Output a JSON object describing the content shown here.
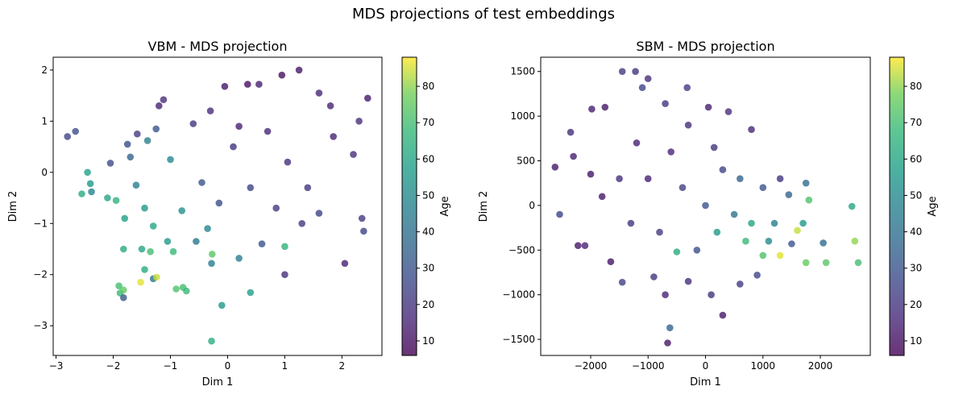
{
  "suptitle": "MDS projections of test embeddings",
  "chart_data": [
    {
      "type": "scatter",
      "title": "VBM - MDS projection",
      "xlabel": "Dim 1",
      "ylabel": "Dim 2",
      "xlim": [
        -3.05,
        2.7
      ],
      "ylim": [
        -3.58,
        2.25
      ],
      "xticks": [
        -3,
        -2,
        -1,
        0,
        1,
        2
      ],
      "yticks": [
        -3,
        -2,
        -1,
        0,
        1,
        2
      ],
      "colorbar": {
        "label": "Age",
        "range": [
          6,
          88
        ],
        "ticks": [
          10,
          20,
          30,
          40,
          50,
          60,
          70,
          80
        ],
        "colormap": "viridis"
      },
      "points": [
        {
          "x": -2.8,
          "y": 0.7,
          "age": 25
        },
        {
          "x": -2.66,
          "y": 0.8,
          "age": 28
        },
        {
          "x": -2.55,
          "y": -0.42,
          "age": 62
        },
        {
          "x": -2.45,
          "y": 0.0,
          "age": 58
        },
        {
          "x": -2.4,
          "y": -0.22,
          "age": 55
        },
        {
          "x": -2.38,
          "y": -0.38,
          "age": 48
        },
        {
          "x": -2.05,
          "y": 0.18,
          "age": 27
        },
        {
          "x": -2.1,
          "y": -0.5,
          "age": 60
        },
        {
          "x": -1.95,
          "y": -0.55,
          "age": 65
        },
        {
          "x": -1.9,
          "y": -2.22,
          "age": 70
        },
        {
          "x": -1.88,
          "y": -2.36,
          "age": 68
        },
        {
          "x": -1.82,
          "y": -2.3,
          "age": 75
        },
        {
          "x": -1.82,
          "y": -2.45,
          "age": 32
        },
        {
          "x": -1.8,
          "y": -0.9,
          "age": 58
        },
        {
          "x": -1.82,
          "y": -1.5,
          "age": 62
        },
        {
          "x": -1.75,
          "y": 0.55,
          "age": 28
        },
        {
          "x": -1.58,
          "y": 0.75,
          "age": 22
        },
        {
          "x": -1.5,
          "y": -1.5,
          "age": 60
        },
        {
          "x": -1.52,
          "y": -2.15,
          "age": 86
        },
        {
          "x": -1.45,
          "y": -1.9,
          "age": 62
        },
        {
          "x": -1.4,
          "y": 0.62,
          "age": 45
        },
        {
          "x": -1.35,
          "y": -1.55,
          "age": 70
        },
        {
          "x": -1.3,
          "y": -2.08,
          "age": 40
        },
        {
          "x": -1.24,
          "y": -2.05,
          "age": 84
        },
        {
          "x": -1.2,
          "y": 1.3,
          "age": 15
        },
        {
          "x": -1.12,
          "y": 1.42,
          "age": 18
        },
        {
          "x": -0.95,
          "y": -1.55,
          "age": 68
        },
        {
          "x": -0.9,
          "y": -2.28,
          "age": 72
        },
        {
          "x": -0.78,
          "y": -2.25,
          "age": 70
        },
        {
          "x": -0.72,
          "y": -2.32,
          "age": 68
        },
        {
          "x": -0.28,
          "y": -1.78,
          "age": 45
        },
        {
          "x": -0.27,
          "y": -1.6,
          "age": 74
        },
        {
          "x": -0.28,
          "y": -3.3,
          "age": 64
        },
        {
          "x": -0.1,
          "y": -2.6,
          "age": 55
        },
        {
          "x": 0.2,
          "y": -1.68,
          "age": 45
        },
        {
          "x": 0.4,
          "y": -2.35,
          "age": 58
        },
        {
          "x": 0.95,
          "y": 1.9,
          "age": 10
        },
        {
          "x": 1.25,
          "y": 2.0,
          "age": 12
        },
        {
          "x": 2.45,
          "y": 1.45,
          "age": 12
        },
        {
          "x": 2.2,
          "y": 0.35,
          "age": 18
        },
        {
          "x": 2.35,
          "y": -0.9,
          "age": 22
        },
        {
          "x": 2.38,
          "y": -1.15,
          "age": 25
        },
        {
          "x": 2.05,
          "y": -1.78,
          "age": 14
        },
        {
          "x": 1.0,
          "y": -2.0,
          "age": 18
        },
        {
          "x": 1.0,
          "y": -1.45,
          "age": 65
        },
        {
          "x": 0.35,
          "y": 1.72,
          "age": 10
        },
        {
          "x": -0.05,
          "y": 1.68,
          "age": 12
        },
        {
          "x": 0.55,
          "y": 1.72,
          "age": 14
        },
        {
          "x": 1.6,
          "y": 1.55,
          "age": 16
        },
        {
          "x": 1.8,
          "y": 1.3,
          "age": 15
        },
        {
          "x": 2.3,
          "y": 1.0,
          "age": 18
        },
        {
          "x": -1.6,
          "y": -0.25,
          "age": 45
        },
        {
          "x": -1.45,
          "y": -0.7,
          "age": 55
        },
        {
          "x": -1.3,
          "y": -1.05,
          "age": 60
        },
        {
          "x": -1.05,
          "y": -1.35,
          "age": 55
        },
        {
          "x": -0.55,
          "y": -1.35,
          "age": 42
        },
        {
          "x": -0.35,
          "y": -1.1,
          "age": 48
        },
        {
          "x": 0.6,
          "y": -1.4,
          "age": 30
        },
        {
          "x": 1.3,
          "y": -1.0,
          "age": 22
        },
        {
          "x": 1.6,
          "y": -0.8,
          "age": 25
        },
        {
          "x": 1.85,
          "y": 0.7,
          "age": 15
        },
        {
          "x": -1.7,
          "y": 0.3,
          "age": 35
        },
        {
          "x": -1.25,
          "y": 0.85,
          "age": 30
        },
        {
          "x": -1.0,
          "y": 0.25,
          "age": 50
        },
        {
          "x": -0.8,
          "y": -0.75,
          "age": 52
        },
        {
          "x": -0.6,
          "y": 0.95,
          "age": 20
        },
        {
          "x": -0.3,
          "y": 1.2,
          "age": 18
        },
        {
          "x": 0.1,
          "y": 0.5,
          "age": 20
        },
        {
          "x": 0.4,
          "y": -0.3,
          "age": 25
        },
        {
          "x": 0.7,
          "y": 0.8,
          "age": 16
        },
        {
          "x": 1.05,
          "y": 0.2,
          "age": 18
        },
        {
          "x": 1.4,
          "y": -0.3,
          "age": 20
        },
        {
          "x": -0.45,
          "y": -0.2,
          "age": 30
        },
        {
          "x": -0.15,
          "y": -0.6,
          "age": 28
        },
        {
          "x": 0.2,
          "y": 0.9,
          "age": 14
        },
        {
          "x": 0.85,
          "y": -0.7,
          "age": 22
        }
      ]
    },
    {
      "type": "scatter",
      "title": "SBM - MDS projection",
      "xlabel": "Dim 1",
      "ylabel": "Dim 2",
      "xlim": [
        -2870,
        2870
      ],
      "ylim": [
        -1680,
        1660
      ],
      "xticks": [
        -2000,
        -1000,
        0,
        1000,
        2000
      ],
      "yticks": [
        -1500,
        -1000,
        -500,
        0,
        500,
        1000,
        1500
      ],
      "colorbar": {
        "label": "Age",
        "range": [
          6,
          88
        ],
        "ticks": [
          10,
          20,
          30,
          40,
          50,
          60,
          70,
          80
        ],
        "colormap": "viridis"
      },
      "points": [
        {
          "x": -2620,
          "y": 430,
          "age": 12
        },
        {
          "x": -2540,
          "y": -100,
          "age": 25
        },
        {
          "x": -2350,
          "y": 820,
          "age": 18
        },
        {
          "x": -2220,
          "y": -450,
          "age": 12
        },
        {
          "x": -2100,
          "y": -450,
          "age": 15
        },
        {
          "x": -1980,
          "y": 1080,
          "age": 14
        },
        {
          "x": -1750,
          "y": 1100,
          "age": 12
        },
        {
          "x": -1650,
          "y": -630,
          "age": 12
        },
        {
          "x": -1450,
          "y": 1500,
          "age": 22
        },
        {
          "x": -1220,
          "y": 1500,
          "age": 20
        },
        {
          "x": -1000,
          "y": 1420,
          "age": 18
        },
        {
          "x": -1100,
          "y": 1320,
          "age": 25
        },
        {
          "x": -700,
          "y": 1140,
          "age": 20
        },
        {
          "x": -320,
          "y": 1320,
          "age": 22
        },
        {
          "x": -1450,
          "y": -860,
          "age": 24
        },
        {
          "x": -900,
          "y": -800,
          "age": 20
        },
        {
          "x": -700,
          "y": -1000,
          "age": 15
        },
        {
          "x": -620,
          "y": -1370,
          "age": 35
        },
        {
          "x": -660,
          "y": -1540,
          "age": 12
        },
        {
          "x": 300,
          "y": -1230,
          "age": 12
        },
        {
          "x": 100,
          "y": -1000,
          "age": 20
        },
        {
          "x": -300,
          "y": -850,
          "age": 18
        },
        {
          "x": 600,
          "y": -880,
          "age": 22
        },
        {
          "x": 900,
          "y": -780,
          "age": 25
        },
        {
          "x": 1500,
          "y": -430,
          "age": 30
        },
        {
          "x": 1750,
          "y": -640,
          "age": 76
        },
        {
          "x": 2550,
          "y": -10,
          "age": 60
        },
        {
          "x": 2600,
          "y": -400,
          "age": 80
        },
        {
          "x": 2660,
          "y": -640,
          "age": 70
        },
        {
          "x": 2100,
          "y": -640,
          "age": 74
        },
        {
          "x": 2050,
          "y": -420,
          "age": 38
        },
        {
          "x": 1800,
          "y": 60,
          "age": 72
        },
        {
          "x": 1600,
          "y": -280,
          "age": 84
        },
        {
          "x": 1300,
          "y": -560,
          "age": 86
        },
        {
          "x": 1750,
          "y": 250,
          "age": 38
        },
        {
          "x": 1000,
          "y": -560,
          "age": 72
        },
        {
          "x": 700,
          "y": -400,
          "age": 68
        },
        {
          "x": 800,
          "y": -200,
          "age": 60
        },
        {
          "x": -500,
          "y": -520,
          "age": 62
        },
        {
          "x": 200,
          "y": -300,
          "age": 55
        },
        {
          "x": 1450,
          "y": 120,
          "age": 35
        },
        {
          "x": 1300,
          "y": 300,
          "age": 20
        },
        {
          "x": 800,
          "y": 850,
          "age": 16
        },
        {
          "x": 400,
          "y": 1050,
          "age": 18
        },
        {
          "x": 50,
          "y": 1100,
          "age": 14
        },
        {
          "x": -300,
          "y": 900,
          "age": 18
        },
        {
          "x": -1200,
          "y": 700,
          "age": 15
        },
        {
          "x": -1500,
          "y": 300,
          "age": 18
        },
        {
          "x": -1800,
          "y": 100,
          "age": 12
        },
        {
          "x": -1300,
          "y": -200,
          "age": 20
        },
        {
          "x": -800,
          "y": -300,
          "age": 22
        },
        {
          "x": -400,
          "y": 200,
          "age": 24
        },
        {
          "x": 0,
          "y": 0,
          "age": 30
        },
        {
          "x": 300,
          "y": 400,
          "age": 25
        },
        {
          "x": 500,
          "y": -100,
          "age": 40
        },
        {
          "x": 1000,
          "y": 200,
          "age": 30
        },
        {
          "x": 1200,
          "y": -200,
          "age": 45
        },
        {
          "x": -1000,
          "y": 300,
          "age": 14
        },
        {
          "x": -600,
          "y": 600,
          "age": 16
        },
        {
          "x": 150,
          "y": 650,
          "age": 20
        },
        {
          "x": -150,
          "y": -500,
          "age": 28
        },
        {
          "x": 600,
          "y": 300,
          "age": 35
        },
        {
          "x": 1100,
          "y": -400,
          "age": 50
        },
        {
          "x": 1700,
          "y": -200,
          "age": 55
        },
        {
          "x": -2000,
          "y": 350,
          "age": 12
        },
        {
          "x": -2300,
          "y": 550,
          "age": 14
        }
      ]
    }
  ]
}
